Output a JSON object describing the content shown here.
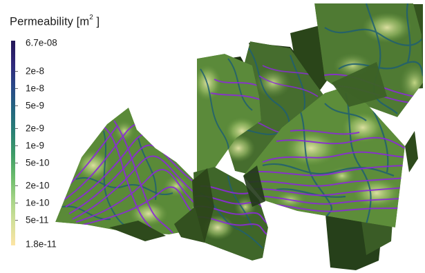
{
  "colorbar": {
    "title_text": "Permeability [m",
    "title_sup": "2",
    "title_close": " ]",
    "max_label": "6.7e-08",
    "min_label": "1.8e-11",
    "ticks": [
      {
        "label": "2e-8",
        "value": 2e-08
      },
      {
        "label": "1e-8",
        "value": 1e-08
      },
      {
        "label": "5e-9",
        "value": 5e-09
      },
      {
        "label": "2e-9",
        "value": 2e-09
      },
      {
        "label": "1e-9",
        "value": 1e-09
      },
      {
        "label": "5e-10",
        "value": 5e-10
      },
      {
        "label": "2e-10",
        "value": 2e-10
      },
      {
        "label": "1e-10",
        "value": 1e-10
      },
      {
        "label": "5e-11",
        "value": 5e-11
      }
    ],
    "range": [
      1.8e-11,
      6.7e-08
    ],
    "scale": "log",
    "colors": [
      "#fde4a4",
      "#d4e09a",
      "#a6d487",
      "#6cbc6c",
      "#3f9c68",
      "#2a8075",
      "#246580",
      "#2a4888",
      "#30287a",
      "#231656"
    ]
  },
  "scene": {
    "fracture_dark": "#30481f",
    "fracture_mid": "#557e38",
    "fracture_light": "#c9d88e",
    "vein_color": "#1e5a73",
    "streamline_color": "#8a2bd6"
  }
}
